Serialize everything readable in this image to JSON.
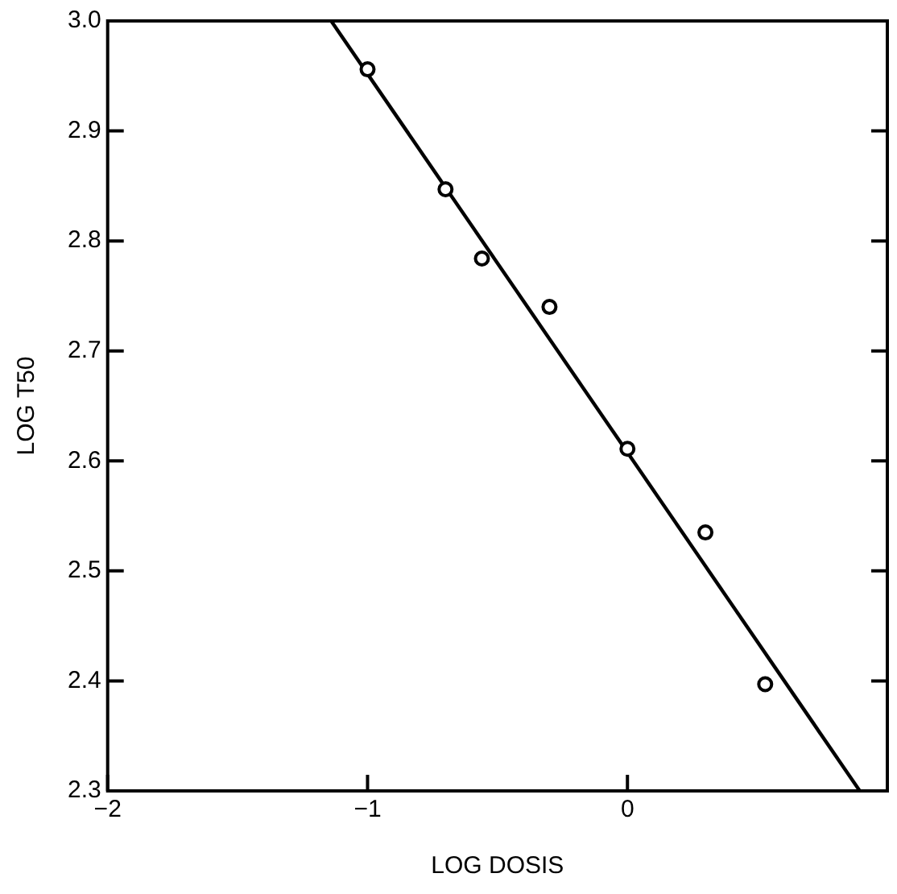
{
  "chart_data": {
    "type": "scatter",
    "xlabel": "LOG DOSIS",
    "ylabel": "LOG T50",
    "xlim": [
      -2,
      1
    ],
    "xticks": [
      -2,
      -1,
      0
    ],
    "ylim": [
      2.3,
      3.0
    ],
    "yticks": [
      {
        "value": 2.3,
        "label": "2.3"
      },
      {
        "value": 2.4,
        "label": "2.4"
      },
      {
        "value": 2.5,
        "label": "2.5"
      },
      {
        "value": 2.6,
        "label": "2.6"
      },
      {
        "value": 2.7,
        "label": "2.7"
      },
      {
        "value": 2.8,
        "label": "2.8"
      },
      {
        "value": 2.9,
        "label": "2.9"
      },
      {
        "value": 3.0,
        "label": "3.0"
      }
    ],
    "grid": false,
    "legend": false,
    "marker": "circle",
    "series": [
      {
        "color": "#000000",
        "x": [
          -1.0,
          -0.7,
          -0.56,
          -0.3,
          0.0,
          0.3,
          0.53
        ],
        "values": [
          2.956,
          2.847,
          2.784,
          2.74,
          2.611,
          2.535,
          2.397
        ]
      },
      {
        "type": "line",
        "color": "#000000",
        "marker": "none",
        "x": [
          -1.14,
          0.894
        ],
        "values": [
          3.0,
          2.3
        ]
      }
    ]
  }
}
